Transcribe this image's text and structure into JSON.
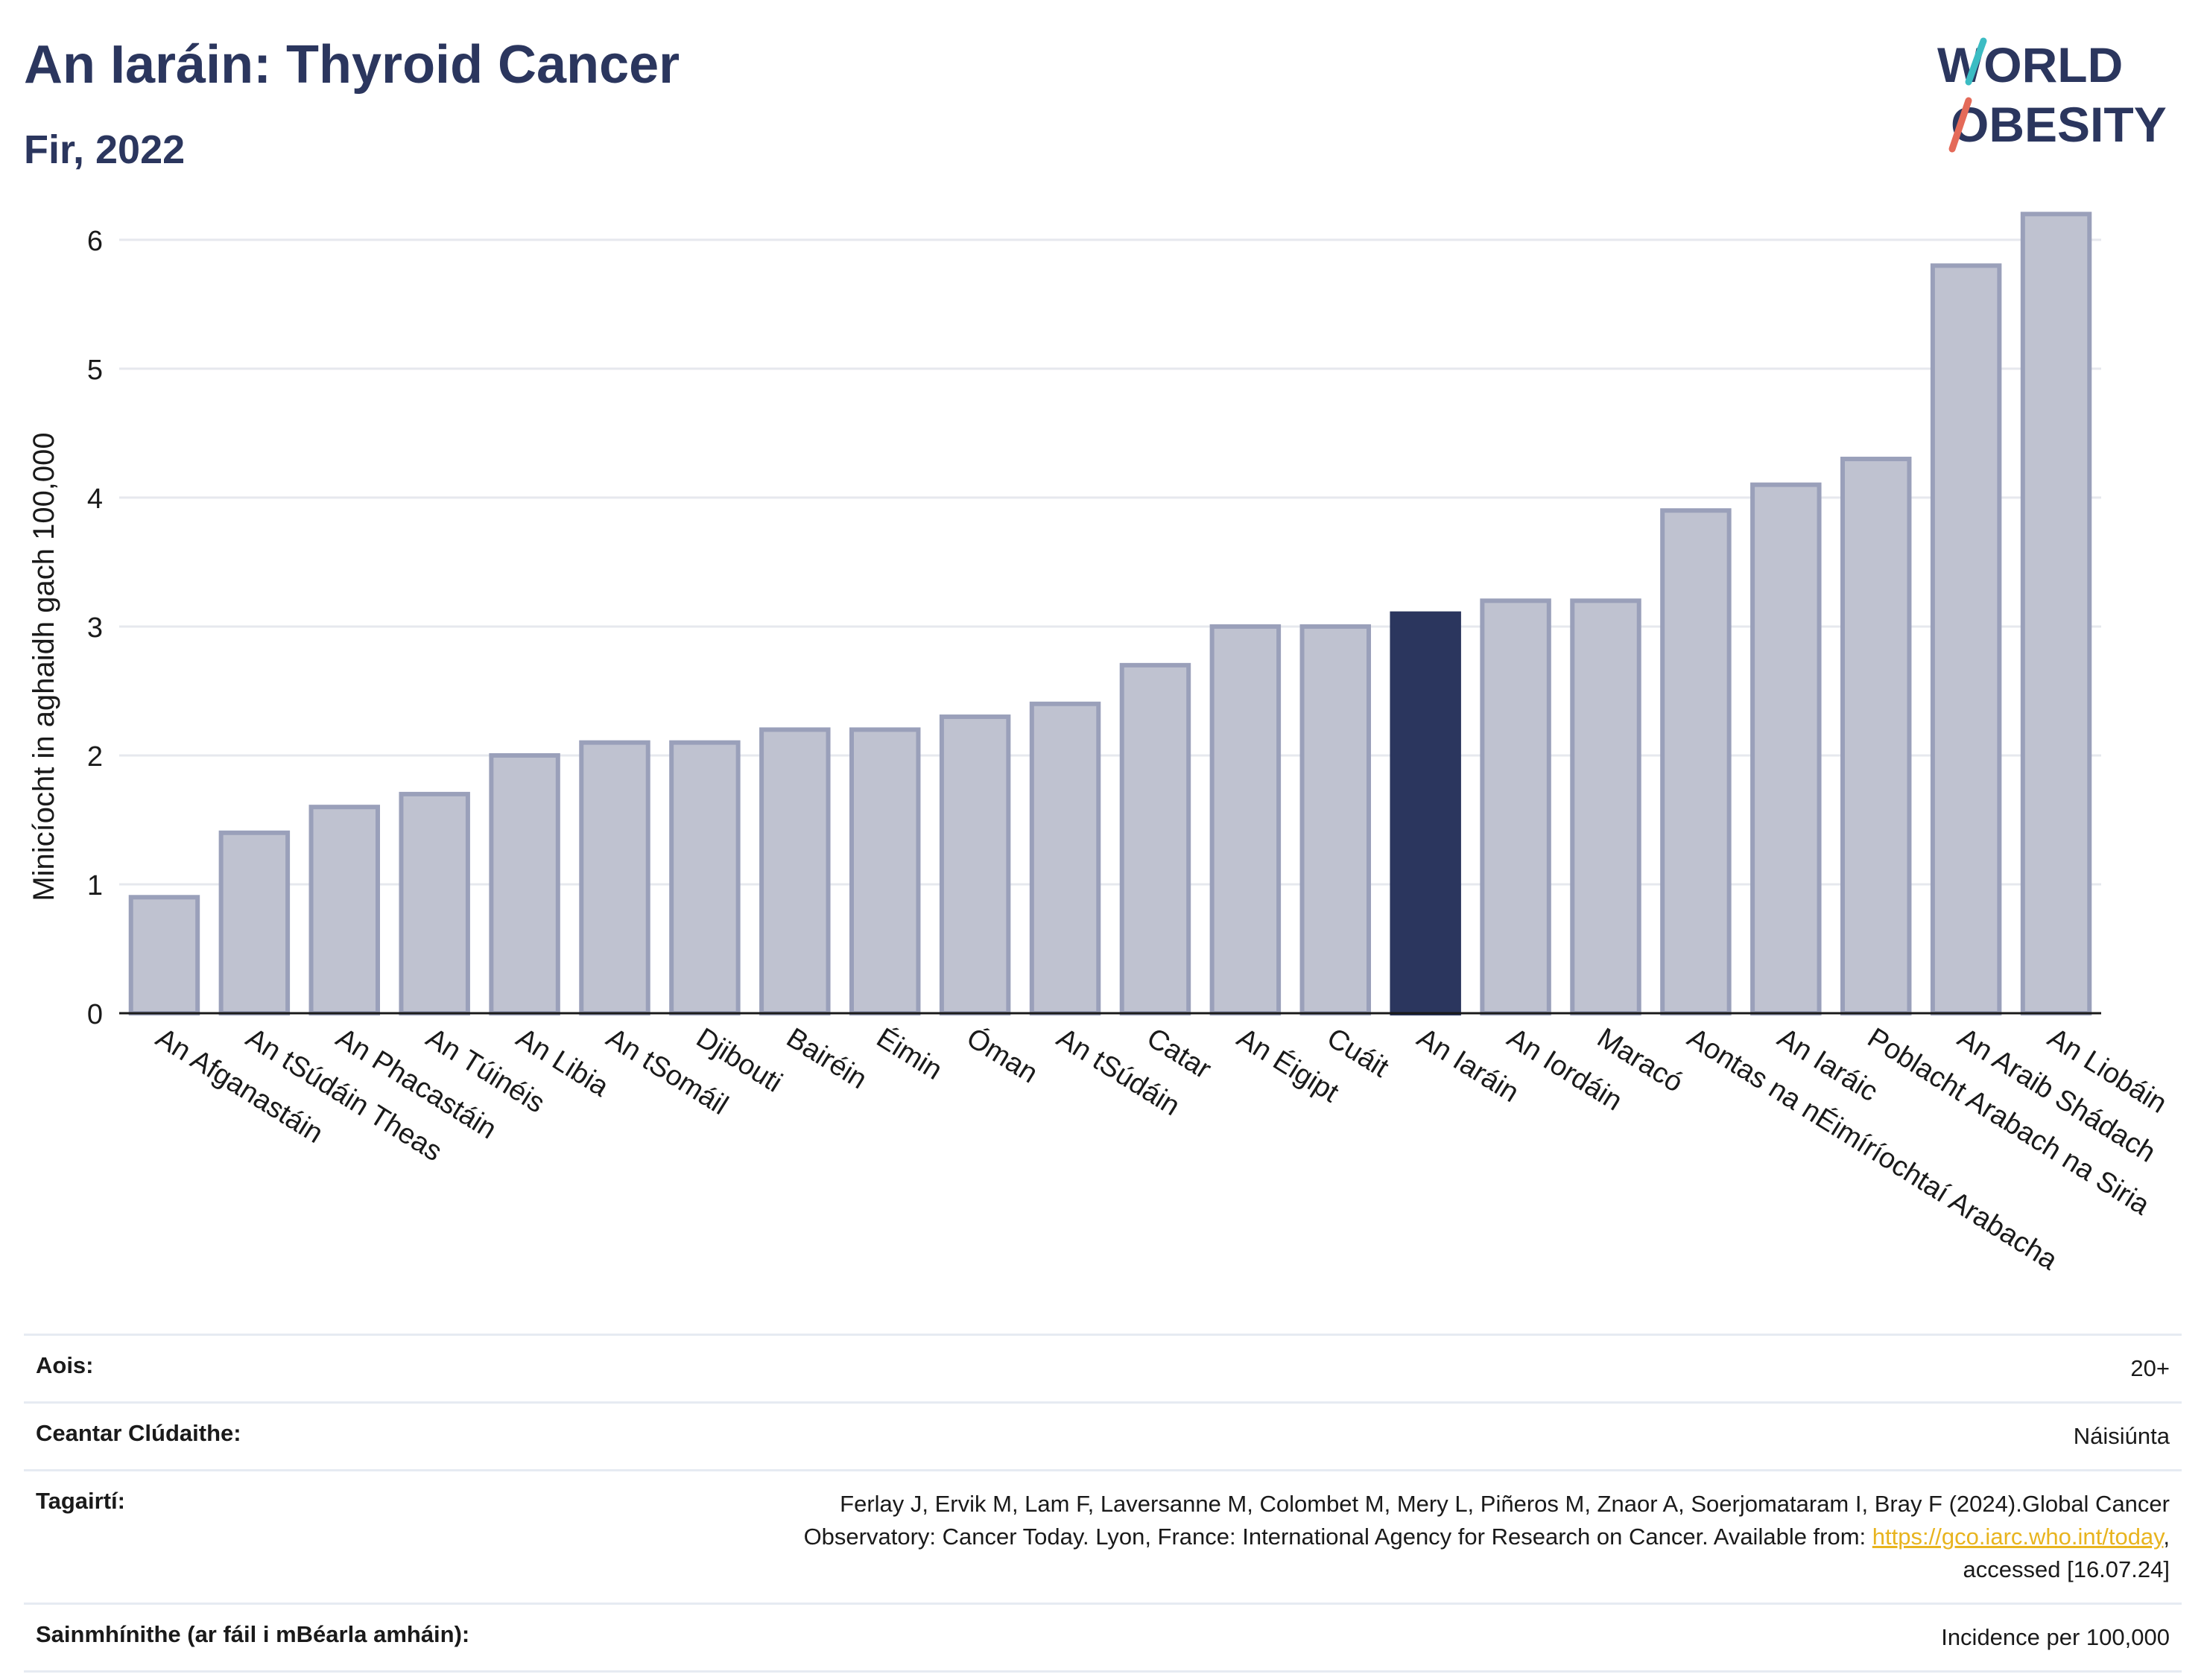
{
  "header": {
    "title": "An Iaráin: Thyroid Cancer",
    "subtitle": "Fir, 2022"
  },
  "logo": {
    "line1": "WORLD",
    "line2": "OBESITY",
    "accent_teal": "#3cbcc3",
    "accent_coral": "#e46a59"
  },
  "colors": {
    "bar": "#bfc2d0",
    "bar_stroke": "#9aa0ba",
    "highlight": "#2b365e",
    "grid": "#e6e8ee",
    "axis": "#1a1a1a"
  },
  "chart_data": {
    "type": "bar",
    "ylabel": "Minicíocht in aghaidh gach 100,000",
    "xlabel": "",
    "ylim": [
      0,
      6.3
    ],
    "yticks": [
      0,
      1,
      2,
      3,
      4,
      5,
      6
    ],
    "grid": true,
    "highlight_category": "An Iaráin",
    "categories": [
      "An Afganastáin",
      "An tSúdáin Theas",
      "An Phacastáin",
      "An Túinéis",
      "An Libia",
      "An tSomáil",
      "Djibouti",
      "Bairéin",
      "Éimin",
      "Óman",
      "An tSúdáin",
      "Catar",
      "An Éigipt",
      "Cuáit",
      "An Iaráin",
      "An Iordáin",
      "Maracó",
      "Aontas na nÉimíríochtaí Arabacha",
      "An Iaráic",
      "Poblacht Arabach na Siria",
      "An Araib Shádach",
      "An Liobáin"
    ],
    "values": [
      0.9,
      1.4,
      1.6,
      1.7,
      2.0,
      2.1,
      2.1,
      2.2,
      2.2,
      2.3,
      2.4,
      2.7,
      3.0,
      3.0,
      3.1,
      3.2,
      3.2,
      3.9,
      4.1,
      4.3,
      5.8,
      6.2
    ]
  },
  "info": [
    {
      "label": "Aois:",
      "value": "20+"
    },
    {
      "label": "Ceantar Clúdaithe:",
      "value": "Náisiúnta"
    },
    {
      "label": "Tagairtí:",
      "value_line1": "Ferlay J, Ervik M, Lam F, Laversanne M, Colombet M, Mery L, Piñeros M, Znaor A, Soerjomataram I, Bray F (2024).Global Cancer",
      "value_line2_pre": "Observatory: Cancer Today. Lyon, France: International Agency for Research on Cancer. Available from: ",
      "link_text": "https://gco.iarc.who.int/today",
      "value_line2_post": ",",
      "value_line3": "accessed [16.07.24]"
    },
    {
      "label": "Sainmhínithe (ar fáil i mBéarla amháin):",
      "value": "Incidence per 100,000"
    }
  ]
}
